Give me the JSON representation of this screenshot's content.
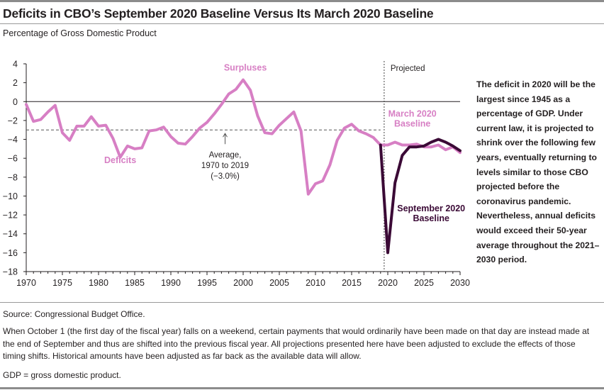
{
  "header": {
    "title": "Deficits in CBO’s September 2020 Baseline Versus Its March 2020 Baseline",
    "subtitle": "Percentage of Gross Domestic Product"
  },
  "side_note": "The deficit in 2020 will be the largest since 1945 as a percentage of GDP. Under current law, it is projected to shrink over the following few years, eventually returning to levels similar to those CBO projected before the coronavirus pandemic. Nevertheless, annual deficits would exceed their 50-year average throughout the 2021–2030 period.",
  "footer": {
    "source": "Source: Congressional Budget Office.",
    "note": "When October 1 (the first day of the fiscal year) falls on a weekend, certain payments that would ordinarily have been made on that day are instead made at the end of September and thus are shifted into the previous fiscal year. All projections presented here have been adjusted to exclude the effects of those timing shifts. Historical amounts have been adjusted as far back as the available data will allow.",
    "gdp": "GDP = gross domestic product."
  },
  "chart_data": {
    "type": "line",
    "xlim": [
      1970,
      2030
    ],
    "ylim": [
      -18,
      4
    ],
    "x_ticks": [
      1970,
      1975,
      1980,
      1985,
      1990,
      1995,
      2000,
      2005,
      2010,
      2015,
      2020,
      2025,
      2030
    ],
    "y_ticks": [
      4,
      2,
      0,
      -2,
      -4,
      -6,
      -8,
      -10,
      -12,
      -14,
      -16,
      -18
    ],
    "projected_start": 2019.5,
    "colors": {
      "march": "#d77fc4",
      "september": "#3b0a36",
      "axis": "#231f20",
      "average": "#555555"
    },
    "series": [
      {
        "key": "march",
        "name": "March 2020 Baseline",
        "x": [
          1970,
          1971,
          1972,
          1973,
          1974,
          1975,
          1976,
          1977,
          1978,
          1979,
          1980,
          1981,
          1982,
          1983,
          1984,
          1985,
          1986,
          1987,
          1988,
          1989,
          1990,
          1991,
          1992,
          1993,
          1994,
          1995,
          1996,
          1997,
          1998,
          1999,
          2000,
          2001,
          2002,
          2003,
          2004,
          2005,
          2006,
          2007,
          2008,
          2009,
          2010,
          2011,
          2012,
          2013,
          2014,
          2015,
          2016,
          2017,
          2018,
          2019,
          2020,
          2021,
          2022,
          2023,
          2024,
          2025,
          2026,
          2027,
          2028,
          2029,
          2030
        ],
        "values": [
          -0.3,
          -2.1,
          -1.9,
          -1.1,
          -0.4,
          -3.3,
          -4.1,
          -2.6,
          -2.6,
          -1.6,
          -2.6,
          -2.5,
          -3.9,
          -5.9,
          -4.7,
          -5.0,
          -4.9,
          -3.1,
          -3.0,
          -2.7,
          -3.7,
          -4.4,
          -4.5,
          -3.7,
          -2.8,
          -2.2,
          -1.3,
          -0.3,
          0.8,
          1.3,
          2.3,
          1.2,
          -1.5,
          -3.3,
          -3.4,
          -2.5,
          -1.8,
          -1.1,
          -3.1,
          -9.8,
          -8.7,
          -8.4,
          -6.7,
          -4.1,
          -2.8,
          -2.4,
          -3.1,
          -3.4,
          -3.8,
          -4.6,
          -4.6,
          -4.3,
          -4.6,
          -4.6,
          -4.5,
          -4.8,
          -4.8,
          -4.6,
          -5.1,
          -4.8,
          -5.4
        ]
      },
      {
        "key": "september",
        "name": "September 2020 Baseline",
        "x": [
          2019,
          2020,
          2021,
          2022,
          2023,
          2024,
          2025,
          2026,
          2027,
          2028,
          2029,
          2030
        ],
        "values": [
          -4.6,
          -16.0,
          -8.6,
          -5.7,
          -4.8,
          -4.8,
          -4.7,
          -4.3,
          -4.0,
          -4.3,
          -4.7,
          -5.2
        ]
      }
    ],
    "average": {
      "value": -3.0,
      "from": 1970,
      "to": 2019,
      "label_lines": [
        "Average,",
        "1970 to 2019",
        "(−3.0%)"
      ]
    },
    "annotations": {
      "projected": "Projected",
      "surpluses": "Surpluses",
      "deficits": "Deficits",
      "march_label": [
        "March 2020",
        "Baseline"
      ],
      "september_label": [
        "September 2020",
        "Baseline"
      ]
    }
  }
}
